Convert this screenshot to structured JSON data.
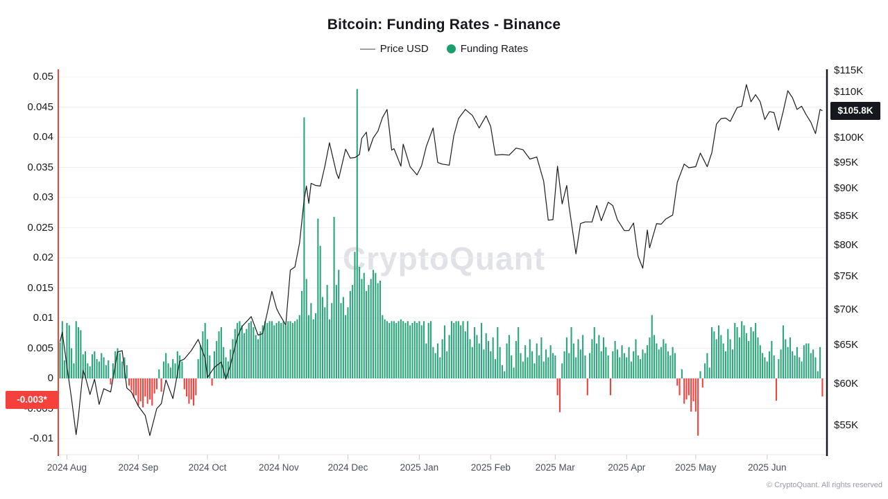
{
  "title": "Bitcoin: Funding Rates - Binance",
  "legend": {
    "price": {
      "label": "Price USD",
      "swatch": "line-icon",
      "color": "#9aa0a6"
    },
    "funding": {
      "label": "Funding Rates",
      "swatch": "dot-icon",
      "color": "#19a06e"
    }
  },
  "watermark": "CryptoQuant",
  "footer": "© CryptoQuant. All rights reserved",
  "badges": {
    "funding_current_label": "-0.003*",
    "funding_current_value": -0.003,
    "price_current_label": "$105.8K",
    "price_current_value_k": 105.8
  },
  "colors": {
    "bar_positive": "#2aa67b",
    "bar_negative": "#f5413c",
    "price_line": "#1b1b1d",
    "left_axis_line": "#f5413c",
    "right_axis_line": "#15181e",
    "grid": "#eef0f3",
    "baseline": "#e2e5e9",
    "tick_mark": "#c7ccd4"
  },
  "axes": {
    "left": {
      "tick_labels": [
        "0.05",
        "0.045",
        "0.04",
        "0.035",
        "0.03",
        "0.025",
        "0.02",
        "0.015",
        "0.01",
        "0.005",
        "0",
        "-0.005",
        "-0.01"
      ],
      "tick_values": [
        0.05,
        0.045,
        0.04,
        0.035,
        0.03,
        0.025,
        0.02,
        0.015,
        0.01,
        0.005,
        0,
        -0.005,
        -0.01
      ]
    },
    "right": {
      "tick_labels": [
        "$115K",
        "$110K",
        "$100K",
        "$95K",
        "$90K",
        "$85K",
        "$80K",
        "$75K",
        "$70K",
        "$65K",
        "$60K",
        "$55K"
      ],
      "tick_values_k": [
        115,
        110,
        100,
        95,
        90,
        85,
        80,
        75,
        70,
        65,
        60,
        55
      ],
      "scale": "log"
    },
    "x": {
      "tick_labels": [
        "2024 Aug",
        "2024 Sep",
        "2024 Oct",
        "2024 Nov",
        "2024 Dec",
        "2025 Jan",
        "2025 Feb",
        "2025 Mar",
        "2025 Apr",
        "2025 May",
        "2025 Jun"
      ],
      "month_day_offsets": [
        3,
        34,
        64,
        95,
        125,
        156,
        187,
        215,
        246,
        276,
        307
      ]
    }
  },
  "chart_data": {
    "type": "mixed",
    "title": "Bitcoin: Funding Rates - Binance",
    "grid": true,
    "legend_position": "top-center",
    "left_ylim": [
      -0.0126,
      0.0513
    ],
    "right_ylim_k": [
      51.8,
      115.3
    ],
    "right_scale": "log",
    "x_range_months": [
      "2024 Aug",
      "2025 Jun"
    ],
    "series": [
      {
        "name": "Funding Rates",
        "type": "bar",
        "color": "#2aa67b",
        "negative_color": "#f5413c",
        "current_value": -0.003,
        "values_rows": [
          [
            0.006,
            0.0095,
            0.003,
            0.0092,
            0.0088,
            0.005,
            0.0025,
            0.0095,
            0.0085,
            0.008
          ],
          [
            0.004,
            0.0045,
            0.0025,
            0.002,
            0.004,
            0.0045,
            0.0032,
            0.0028,
            0.0042,
            0.0035
          ],
          [
            0.0022,
            0.003,
            -0.001,
            0.0025,
            0.0045,
            0.005,
            0.0042,
            0.0028,
            0.0035,
            0.0022
          ],
          [
            -0.0012,
            -0.002,
            -0.0032,
            -0.0028,
            -0.0045,
            -0.0038,
            -0.0048,
            -0.003,
            -0.0042,
            -0.0035
          ],
          [
            -0.0045,
            -0.0025,
            -0.0018,
            0.0015,
            -0.0022,
            0.0028,
            0.0042,
            0.0025,
            0.0018,
            0.0032
          ],
          [
            0.0025,
            0.0045,
            0.0038,
            0.0028,
            -0.0018,
            -0.003,
            -0.0042,
            -0.0035,
            -0.0045,
            -0.0028
          ],
          [
            0.0032,
            0.0055,
            0.0078,
            0.0092,
            0.0065,
            0.0038,
            -0.0012,
            0.0045,
            0.0062,
            0.0078
          ],
          [
            0.0085,
            0.0052,
            0.0035,
            0.0028,
            0.0048,
            0.0065,
            0.0082,
            0.0092,
            0.0095,
            0.0088
          ],
          [
            0.0075,
            0.0082,
            0.0092,
            0.0095,
            0.0085,
            0.0072,
            0.0065,
            0.0078,
            0.0088,
            0.0095
          ],
          [
            0.0092,
            0.0095,
            0.0095,
            0.0088,
            0.0092,
            0.0095,
            0.0092,
            0.0095,
            0.0088,
            0.0095
          ],
          [
            0.0095,
            0.0092,
            0.0095,
            0.0098,
            0.0105,
            0.0145,
            0.0433,
            0.0165,
            0.0105,
            0.0125
          ],
          [
            0.0098,
            0.0108,
            0.0265,
            0.022,
            0.0135,
            0.0118,
            0.0155,
            0.0098,
            0.0125,
            0.0268
          ],
          [
            0.0155,
            0.018,
            0.0125,
            0.0135,
            0.0105,
            0.0118,
            0.0145,
            0.0155,
            0.021,
            0.048
          ],
          [
            0.0185,
            0.0165,
            0.0175,
            0.0145,
            0.0155,
            0.0165,
            0.018,
            0.0175,
            0.0158,
            0.0162
          ],
          [
            0.0105,
            0.0098,
            0.0095,
            0.0092,
            0.0095,
            0.0095,
            0.0092,
            0.0095,
            0.0098,
            0.0095
          ],
          [
            0.0092,
            0.0095,
            0.0088,
            0.0092,
            0.0095,
            0.0092,
            0.0095,
            0.0088,
            0.0095,
            0.0058
          ],
          [
            0.0092,
            0.0095,
            0.0052,
            0.0042,
            0.0058,
            0.0035,
            0.0065,
            0.0088,
            0.0045,
            0.0072
          ],
          [
            0.0095,
            0.0092,
            0.0095,
            0.0095,
            0.0088,
            0.0095,
            0.0078,
            0.0095,
            0.0065,
            0.0052
          ],
          [
            0.0085,
            0.0072,
            0.0058,
            0.0092,
            0.0048,
            0.0075,
            0.0062,
            0.0045,
            0.0068,
            0.0032
          ],
          [
            0.0085,
            0.0052,
            0.0022,
            0.0012,
            0.0058,
            0.0072,
            0.0038,
            0.0018,
            0.0062,
            0.0085
          ],
          [
            0.0042,
            0.0028,
            0.0055,
            0.0035,
            0.0065,
            0.0045,
            0.0025,
            0.0058,
            0.0038,
            0.0068
          ],
          [
            0.0028,
            0.0048,
            0.0035,
            0.0055,
            0.0042,
            0.0038,
            -0.0028,
            -0.0056,
            0.0025,
            0.0045
          ],
          [
            0.0068,
            0.0042,
            0.0085,
            0.0058,
            0.0035,
            0.0065,
            0.0048,
            0.0072,
            0.0038,
            -0.0028
          ],
          [
            0.0042,
            0.0065,
            0.0085,
            0.0058,
            0.0072,
            0.0045,
            0.0068,
            0.0052,
            0.0038,
            -0.0028
          ],
          [
            0.0045,
            0.0062,
            0.0048,
            0.0035,
            0.0055,
            0.0042,
            0.0035,
            0.0052,
            0.0028,
            0.0045
          ],
          [
            0.0065,
            0.0038,
            0.0032,
            0.0048,
            0.0042,
            0.0055,
            0.0068,
            0.0105,
            0.0072,
            0.0058
          ],
          [
            0.0048,
            0.0052,
            0.0065,
            0.0058,
            0.0045,
            0.0038,
            0.0052,
            0.0042,
            -0.0012,
            -0.0028
          ],
          [
            0.0015,
            -0.0042,
            -0.0035,
            -0.0028,
            -0.0055,
            -0.0038,
            -0.0055,
            -0.0095,
            0.0012,
            -0.0015
          ],
          [
            0.0025,
            0.0042,
            0.0018,
            0.0085,
            0.0078,
            0.0065,
            0.0088,
            0.0072,
            0.0058,
            0.0045
          ],
          [
            0.0082,
            0.0065,
            0.0048,
            0.0092,
            0.0085,
            0.0068,
            0.0095,
            0.0088,
            0.0075,
            0.0062
          ],
          [
            0.0085,
            0.0078,
            0.0092,
            0.0068,
            0.0055,
            0.0042,
            0.0035,
            0.0028,
            0.0045,
            0.0062
          ],
          [
            0.0038,
            -0.0037,
            0.0032,
            0.0048,
            0.0088,
            0.0065,
            0.0052,
            0.0068,
            0.0045,
            0.0038
          ],
          [
            0.0052,
            0.0035,
            0.0028,
            0.0055,
            0.0058,
            0.0058,
            0.0042,
            0.0048,
            0.0035,
            0.0012
          ],
          [
            0.0052,
            -0.003
          ]
        ]
      },
      {
        "name": "Price USD",
        "type": "line",
        "color": "#1b1b1d",
        "unit": "thousand USD",
        "current_value_k": 105.8,
        "points": [
          [
            0,
            65.5
          ],
          [
            1,
            66.8
          ],
          [
            3,
            62.2
          ],
          [
            5,
            58.2
          ],
          [
            7,
            54.0
          ],
          [
            8,
            56.1
          ],
          [
            10,
            61.7
          ],
          [
            11,
            60.9
          ],
          [
            13,
            58.7
          ],
          [
            15,
            60.6
          ],
          [
            17,
            57.5
          ],
          [
            19,
            59.4
          ],
          [
            22,
            59.0
          ],
          [
            25,
            64.1
          ],
          [
            27,
            64.3
          ],
          [
            29,
            59.5
          ],
          [
            31,
            59.0
          ],
          [
            34,
            57.3
          ],
          [
            37,
            56.2
          ],
          [
            39,
            53.9
          ],
          [
            42,
            57.0
          ],
          [
            44,
            57.6
          ],
          [
            46,
            60.5
          ],
          [
            49,
            58.2
          ],
          [
            52,
            62.9
          ],
          [
            54,
            63.2
          ],
          [
            57,
            64.3
          ],
          [
            60,
            65.8
          ],
          [
            63,
            63.3
          ],
          [
            64,
            60.8
          ],
          [
            67,
            62.1
          ],
          [
            70,
            62.8
          ],
          [
            72,
            60.6
          ],
          [
            74,
            62.4
          ],
          [
            77,
            66.1
          ],
          [
            79,
            67.6
          ],
          [
            83,
            69.0
          ],
          [
            86,
            66.4
          ],
          [
            88,
            66.6
          ],
          [
            92,
            72.7
          ],
          [
            94,
            70.2
          ],
          [
            95,
            69.5
          ],
          [
            98,
            67.8
          ],
          [
            100,
            76.0
          ],
          [
            102,
            76.5
          ],
          [
            104,
            80.4
          ],
          [
            106,
            88.0
          ],
          [
            107,
            90.5
          ],
          [
            108,
            87.3
          ],
          [
            109,
            91.0
          ],
          [
            111,
            90.6
          ],
          [
            113,
            90.5
          ],
          [
            115,
            94.3
          ],
          [
            117,
            99.0
          ],
          [
            120,
            93.0
          ],
          [
            121,
            91.9
          ],
          [
            124,
            97.7
          ],
          [
            126,
            95.9
          ],
          [
            128,
            96.0
          ],
          [
            130,
            96.6
          ],
          [
            131,
            99.9
          ],
          [
            133,
            101.2
          ],
          [
            134,
            97.3
          ],
          [
            136,
            100.0
          ],
          [
            138,
            101.4
          ],
          [
            140,
            104.3
          ],
          [
            142,
            106.1
          ],
          [
            144,
            97.5
          ],
          [
            145,
            97.8
          ],
          [
            148,
            94.3
          ],
          [
            149,
            98.7
          ],
          [
            152,
            94.2
          ],
          [
            155,
            92.6
          ],
          [
            157,
            94.4
          ],
          [
            159,
            98.2
          ],
          [
            162,
            102.1
          ],
          [
            164,
            95.0
          ],
          [
            166,
            94.7
          ],
          [
            169,
            94.5
          ],
          [
            171,
            100.5
          ],
          [
            173,
            104.1
          ],
          [
            176,
            106.1
          ],
          [
            179,
            104.8
          ],
          [
            182,
            102.1
          ],
          [
            185,
            104.7
          ],
          [
            187,
            102.4
          ],
          [
            189,
            96.5
          ],
          [
            192,
            96.6
          ],
          [
            195,
            96.5
          ],
          [
            198,
            97.9
          ],
          [
            201,
            97.6
          ],
          [
            204,
            95.7
          ],
          [
            207,
            96.1
          ],
          [
            210,
            91.4
          ],
          [
            212,
            84.3
          ],
          [
            214,
            84.4
          ],
          [
            216,
            94.3
          ],
          [
            218,
            87.2
          ],
          [
            220,
            90.6
          ],
          [
            221,
            86.8
          ],
          [
            224,
            78.6
          ],
          [
            226,
            83.7
          ],
          [
            228,
            84.0
          ],
          [
            231,
            84.0
          ],
          [
            233,
            86.9
          ],
          [
            235,
            84.2
          ],
          [
            238,
            87.5
          ],
          [
            240,
            86.9
          ],
          [
            242,
            84.4
          ],
          [
            245,
            82.5
          ],
          [
            247,
            82.5
          ],
          [
            249,
            83.8
          ],
          [
            251,
            78.2
          ],
          [
            253,
            76.3
          ],
          [
            255,
            82.6
          ],
          [
            256,
            79.6
          ],
          [
            259,
            83.7
          ],
          [
            261,
            83.6
          ],
          [
            263,
            84.5
          ],
          [
            266,
            85.2
          ],
          [
            268,
            91.2
          ],
          [
            271,
            94.7
          ],
          [
            273,
            94.0
          ],
          [
            276,
            94.2
          ],
          [
            278,
            96.9
          ],
          [
            281,
            94.2
          ],
          [
            283,
            97.0
          ],
          [
            285,
            102.9
          ],
          [
            287,
            104.1
          ],
          [
            289,
            104.2
          ],
          [
            291,
            103.5
          ],
          [
            294,
            106.5
          ],
          [
            296,
            106.8
          ],
          [
            298,
            111.7
          ],
          [
            300,
            107.8
          ],
          [
            302,
            109.4
          ],
          [
            304,
            107.8
          ],
          [
            306,
            103.9
          ],
          [
            308,
            105.6
          ],
          [
            310,
            105.4
          ],
          [
            312,
            101.6
          ],
          [
            314,
            105.7
          ],
          [
            316,
            110.3
          ],
          [
            318,
            108.7
          ],
          [
            320,
            106.1
          ],
          [
            322,
            106.8
          ],
          [
            324,
            104.9
          ],
          [
            326,
            103.3
          ],
          [
            328,
            100.9
          ],
          [
            330,
            106.1
          ],
          [
            331,
            105.8
          ]
        ]
      }
    ]
  }
}
